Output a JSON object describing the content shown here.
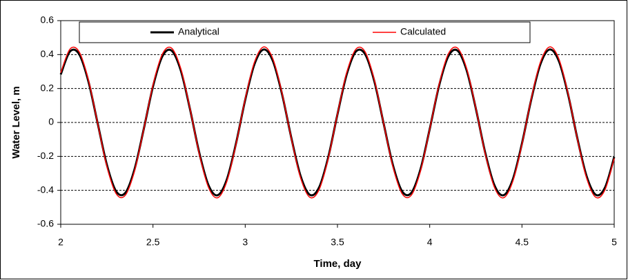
{
  "chart_data": {
    "type": "line",
    "xlabel": "Time, day",
    "ylabel": "Water Level, m",
    "x": [
      2,
      2.05,
      2.1,
      2.15,
      2.2,
      2.25,
      2.3,
      2.35,
      2.4,
      2.45,
      2.5,
      2.55,
      2.6,
      2.65,
      2.7,
      2.75,
      2.8,
      2.85,
      2.9,
      2.95,
      3,
      3.05,
      3.1,
      3.15,
      3.2,
      3.25,
      3.3,
      3.35,
      3.4,
      3.45,
      3.5,
      3.55,
      3.6,
      3.65,
      3.7,
      3.75,
      3.8,
      3.85,
      3.9,
      3.95,
      4,
      4.05,
      4.1,
      4.15,
      4.2,
      4.25,
      4.3,
      4.35,
      4.4,
      4.45,
      4.5,
      4.55,
      4.6,
      4.65,
      4.7,
      4.75,
      4.8,
      4.85,
      4.9,
      4.95,
      5
    ],
    "series": [
      {
        "name": "Analytical",
        "color": "#000000",
        "width": 3,
        "values": [
          0.283,
          0.418,
          0.402,
          0.242,
          -0.004,
          -0.249,
          -0.405,
          -0.415,
          -0.276,
          -0.039,
          0.212,
          0.388,
          0.424,
          0.309,
          0.082,
          -0.174,
          -0.367,
          -0.429,
          -0.337,
          -0.124,
          0.133,
          0.343,
          0.43,
          0.362,
          0.165,
          -0.091,
          -0.315,
          -0.426,
          -0.384,
          -0.205,
          0.048,
          0.283,
          0.418,
          0.402,
          0.242,
          -0.005,
          -0.249,
          -0.405,
          -0.415,
          -0.276,
          -0.039,
          0.213,
          0.388,
          0.424,
          0.308,
          0.082,
          -0.174,
          -0.368,
          -0.429,
          -0.337,
          -0.124,
          0.133,
          0.343,
          0.43,
          0.362,
          0.165,
          -0.092,
          -0.315,
          -0.426,
          -0.384,
          -0.204
        ]
      },
      {
        "name": "Calculated",
        "color": "#ff0000",
        "width": 1.5,
        "values": [
          0.293,
          0.432,
          0.416,
          0.251,
          -0.004,
          -0.258,
          -0.419,
          -0.429,
          -0.286,
          -0.04,
          0.22,
          0.401,
          0.439,
          0.32,
          0.085,
          -0.18,
          -0.38,
          -0.444,
          -0.349,
          -0.129,
          0.138,
          0.355,
          0.445,
          0.375,
          0.171,
          -0.094,
          -0.326,
          -0.441,
          -0.397,
          -0.212,
          0.05,
          0.293,
          0.432,
          0.416,
          0.25,
          -0.005,
          -0.258,
          -0.419,
          -0.429,
          -0.286,
          -0.04,
          0.22,
          0.402,
          0.439,
          0.319,
          0.085,
          -0.18,
          -0.38,
          -0.444,
          -0.348,
          -0.129,
          0.138,
          0.355,
          0.445,
          0.375,
          0.171,
          -0.095,
          -0.326,
          -0.441,
          -0.397,
          -0.211
        ]
      }
    ],
    "xlim": [
      2,
      5
    ],
    "xticks": [
      2,
      2.5,
      3,
      3.5,
      4,
      4.5,
      5
    ],
    "ylim": [
      -0.6,
      0.6
    ],
    "yticks": [
      -0.6,
      -0.4,
      -0.2,
      0,
      0.2,
      0.4,
      0.6
    ],
    "grid": true,
    "legend": "top"
  }
}
